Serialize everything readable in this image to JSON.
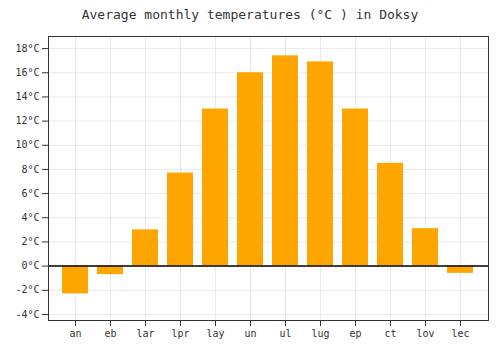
{
  "chart_data": {
    "type": "bar",
    "title": "Average monthly temperatures (°C ) in Doksy",
    "categories": [
      "an",
      "eb",
      "lar",
      "lpr",
      "lay",
      "un",
      "ul",
      "lug",
      "ep",
      "ct",
      "lov",
      "lec"
    ],
    "values": [
      -2.3,
      -0.7,
      3.0,
      7.7,
      13.0,
      16.0,
      17.4,
      16.9,
      13.0,
      8.5,
      3.1,
      -0.6
    ],
    "color": "#FFA500",
    "ylim": [
      -4.5,
      19
    ],
    "yticks": [
      {
        "value": -4,
        "label": "-4°C"
      },
      {
        "value": -2,
        "label": "-2°C"
      },
      {
        "value": 0,
        "label": "0°C"
      },
      {
        "value": 2,
        "label": "2°C"
      },
      {
        "value": 4,
        "label": "4°C"
      },
      {
        "value": 6,
        "label": "6°C"
      },
      {
        "value": 8,
        "label": "8°C"
      },
      {
        "value": 10,
        "label": "10°C"
      },
      {
        "value": 12,
        "label": "12°C"
      },
      {
        "value": 14,
        "label": "14°C"
      },
      {
        "value": 16,
        "label": "16°C"
      },
      {
        "value": 18,
        "label": "18°C"
      }
    ],
    "grid": true
  }
}
